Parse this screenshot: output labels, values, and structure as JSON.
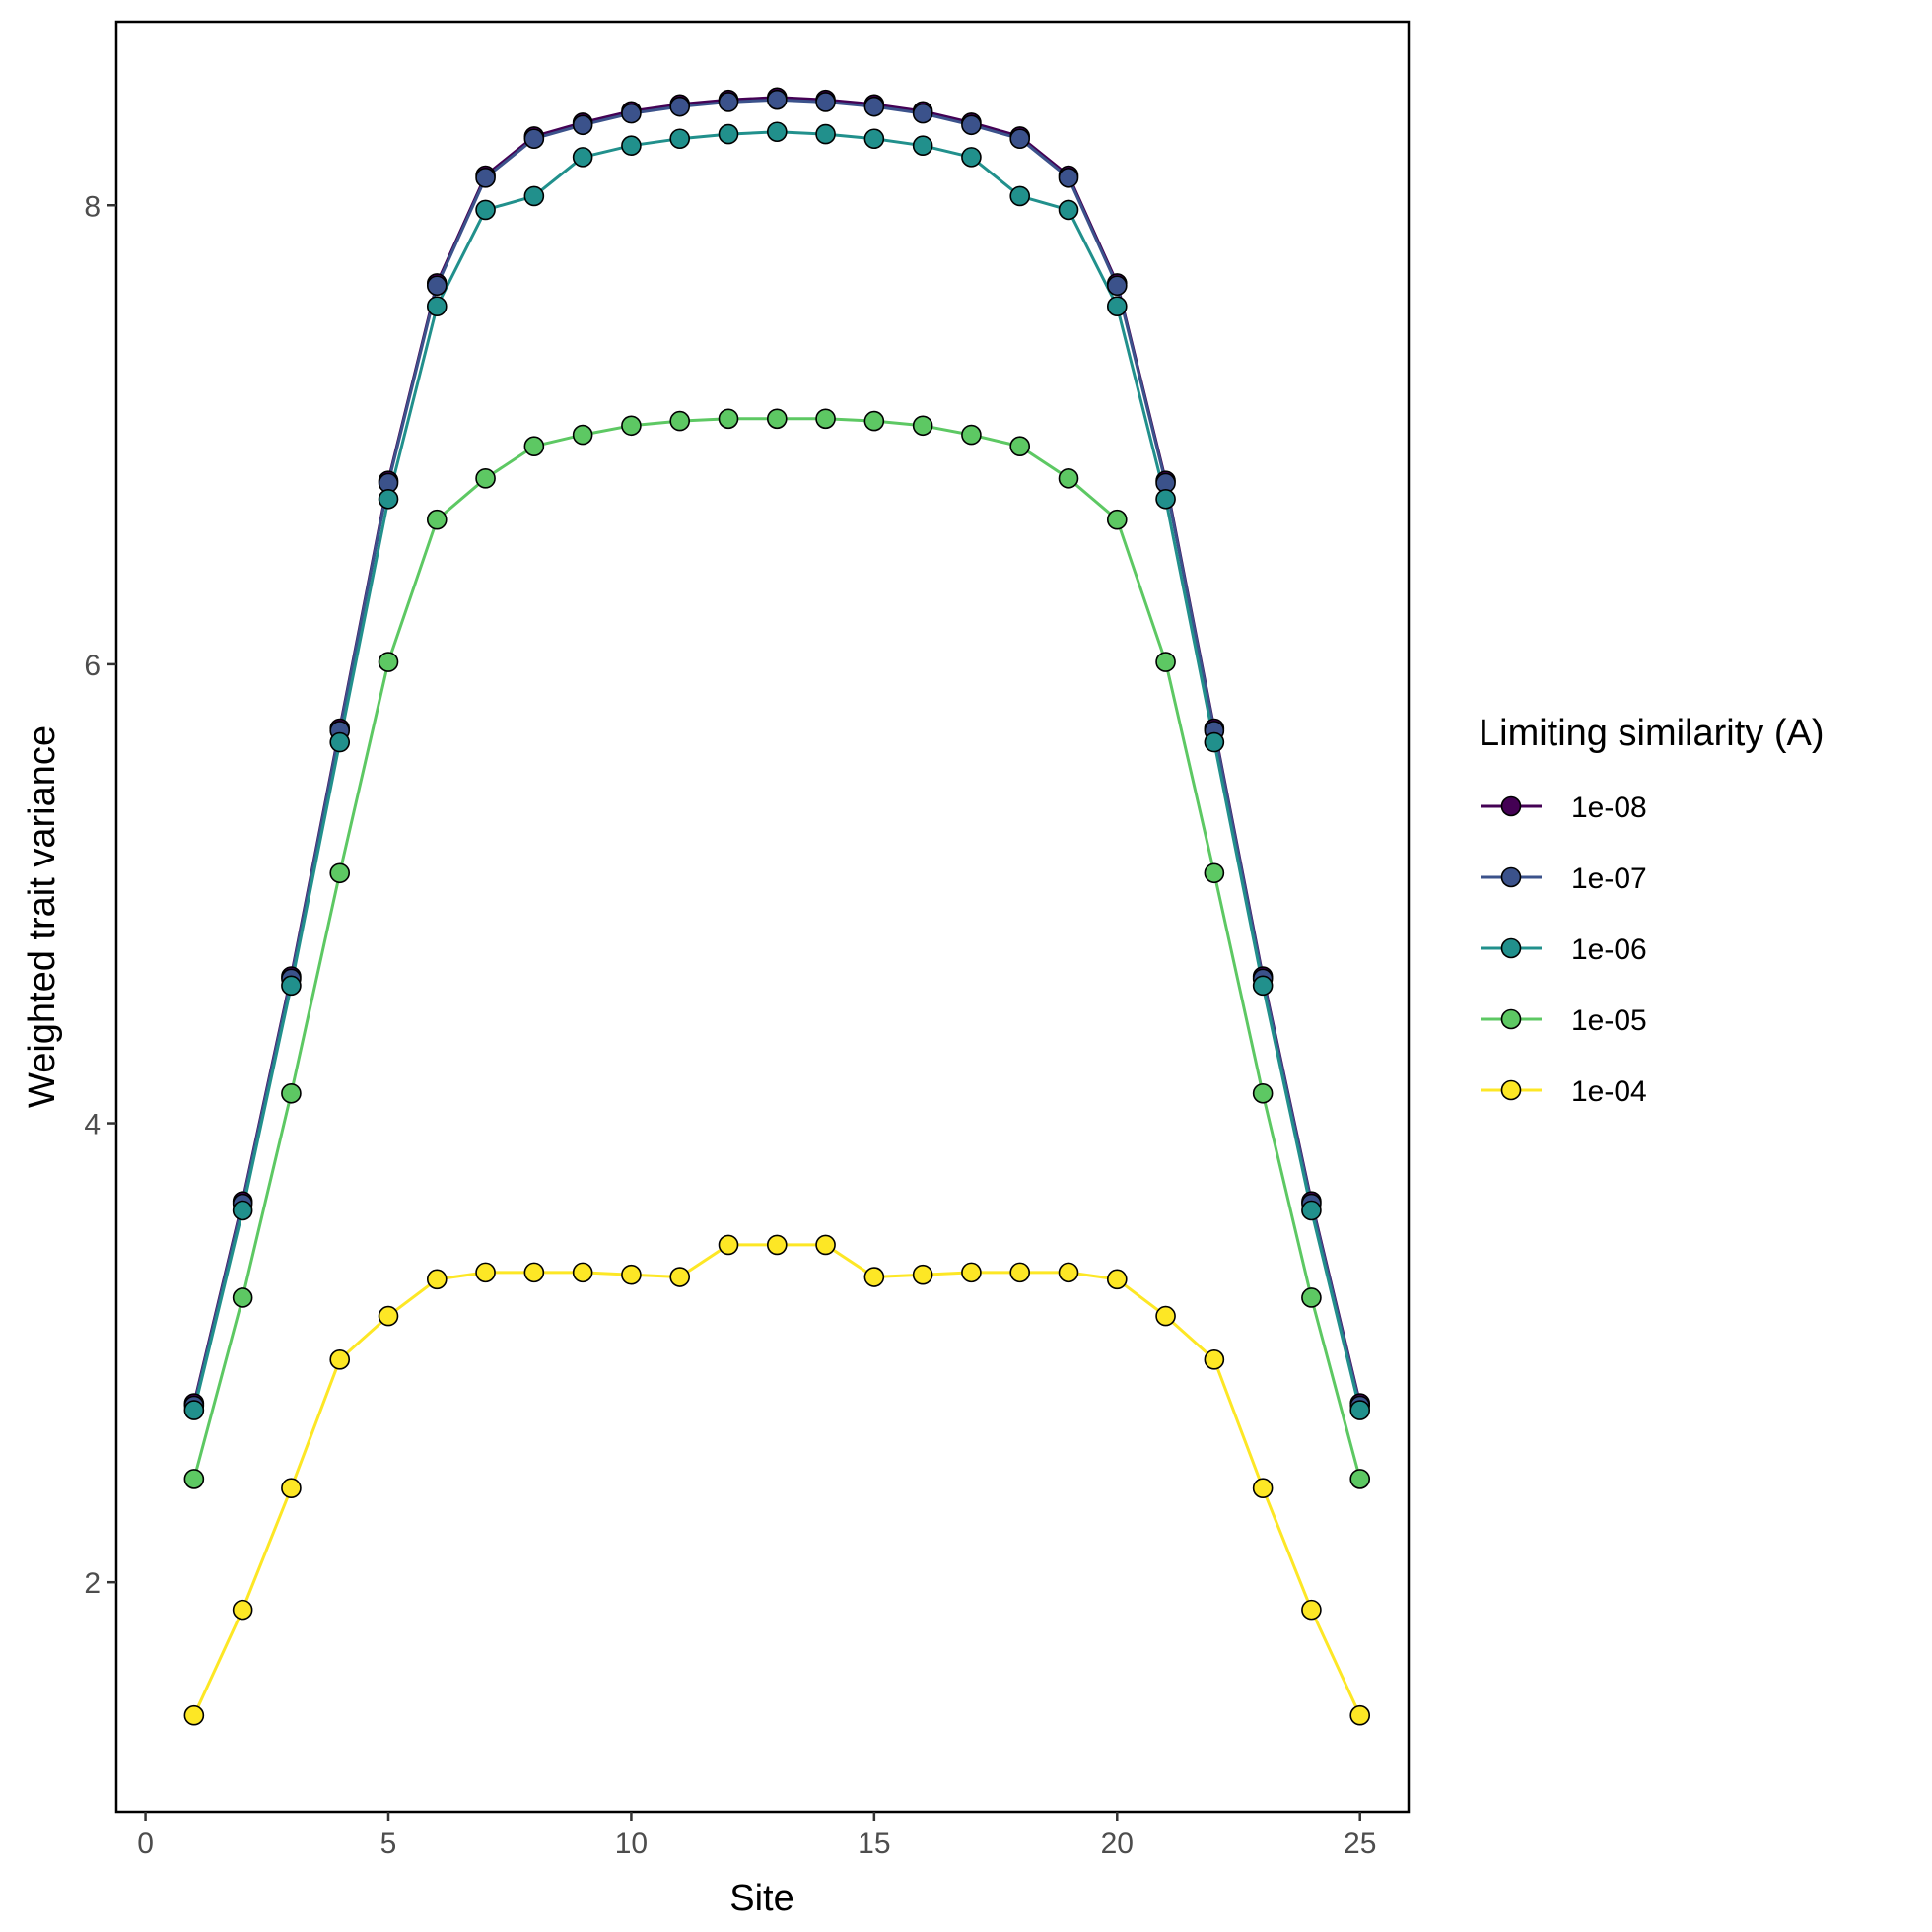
{
  "chart_data": {
    "type": "line",
    "xlabel": "Site",
    "ylabel": "Weighted trait variance",
    "xlim": [
      -0.6,
      26
    ],
    "ylim": [
      1.0,
      8.8
    ],
    "xticks": [
      0,
      5,
      10,
      15,
      20,
      25
    ],
    "yticks": [
      2,
      4,
      6,
      8
    ],
    "grid": false,
    "legend": {
      "title": "Limiting similarity (A)",
      "position": "right"
    },
    "x": [
      1,
      2,
      3,
      4,
      5,
      6,
      7,
      8,
      9,
      10,
      11,
      12,
      13,
      14,
      15,
      16,
      17,
      18,
      19,
      20,
      21,
      22,
      23,
      24,
      25
    ],
    "series": [
      {
        "name": "1e-08",
        "color": "#440154",
        "values": [
          2.78,
          3.66,
          4.64,
          5.72,
          6.8,
          7.66,
          8.13,
          8.3,
          8.36,
          8.41,
          8.44,
          8.46,
          8.47,
          8.46,
          8.44,
          8.41,
          8.36,
          8.3,
          8.13,
          7.66,
          6.8,
          5.72,
          4.64,
          3.66,
          2.78
        ]
      },
      {
        "name": "1e-07",
        "color": "#3b528b",
        "values": [
          2.77,
          3.65,
          4.63,
          5.71,
          6.79,
          7.65,
          8.12,
          8.29,
          8.35,
          8.4,
          8.43,
          8.45,
          8.46,
          8.45,
          8.43,
          8.4,
          8.35,
          8.29,
          8.12,
          7.65,
          6.79,
          5.71,
          4.63,
          3.65,
          2.77
        ]
      },
      {
        "name": "1e-06",
        "color": "#21908c",
        "values": [
          2.75,
          3.62,
          4.6,
          5.66,
          6.72,
          7.56,
          7.98,
          8.04,
          8.21,
          8.26,
          8.29,
          8.31,
          8.32,
          8.31,
          8.29,
          8.26,
          8.21,
          8.04,
          7.98,
          7.56,
          6.72,
          5.66,
          4.6,
          3.62,
          2.75
        ]
      },
      {
        "name": "1e-05",
        "color": "#5dc863",
        "values": [
          2.45,
          3.24,
          4.13,
          5.09,
          6.01,
          6.63,
          6.81,
          6.95,
          7.0,
          7.04,
          7.06,
          7.07,
          7.07,
          7.07,
          7.06,
          7.04,
          7.0,
          6.95,
          6.81,
          6.63,
          6.01,
          5.09,
          4.13,
          3.24,
          2.45
        ]
      },
      {
        "name": "1e-04",
        "color": "#fde725",
        "values": [
          1.42,
          1.88,
          2.41,
          2.97,
          3.16,
          3.32,
          3.35,
          3.35,
          3.35,
          3.34,
          3.33,
          3.47,
          3.47,
          3.47,
          3.33,
          3.34,
          3.35,
          3.35,
          3.35,
          3.32,
          3.16,
          2.97,
          2.41,
          1.88,
          1.42
        ]
      }
    ]
  }
}
